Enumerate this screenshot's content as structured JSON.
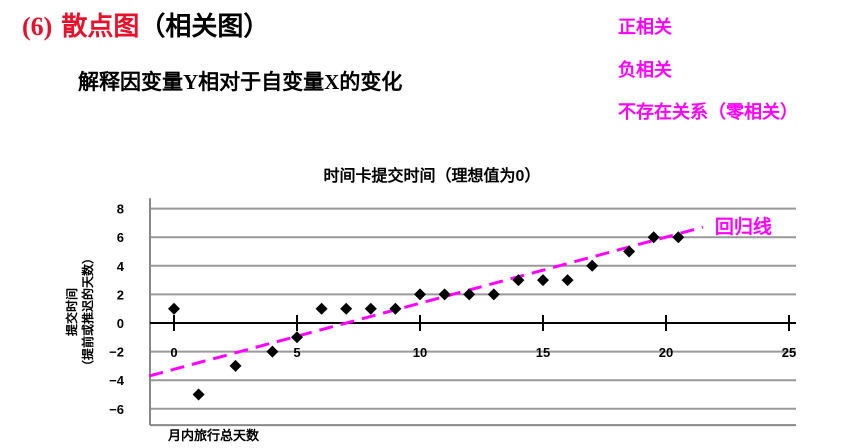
{
  "heading": {
    "number": "(6)",
    "title": "散点图",
    "paren": "（相关图）"
  },
  "subtitle": {
    "part1": "解释因变量",
    "var_y": "Y",
    "part2": "相对于自变量",
    "var_x": "X",
    "part3": "的变化"
  },
  "correlation_types": [
    "正相关",
    "负相关",
    "不存在关系（零相关）"
  ],
  "colors": {
    "heading_red": "#e8102a",
    "accent": "#ff00ff",
    "points": "#000000",
    "grid": "#999999"
  },
  "chart_data": {
    "type": "scatter",
    "title": "时间卡提交时间（理想值为0）",
    "xlabel": "月内旅行总天数",
    "ylabel_line1": "提交时间",
    "ylabel_line2": "（提前或推迟的天数）",
    "xlim": [
      -1,
      25
    ],
    "ylim": [
      -7,
      9
    ],
    "xticks": [
      0,
      5,
      10,
      15,
      20,
      25
    ],
    "yticks": [
      8,
      6,
      4,
      2,
      0,
      -2,
      -4,
      -6
    ],
    "grid": "horizontal",
    "points": [
      {
        "x": 0,
        "y": 1
      },
      {
        "x": 1,
        "y": -5
      },
      {
        "x": 2.5,
        "y": -3
      },
      {
        "x": 4,
        "y": -2
      },
      {
        "x": 5,
        "y": -1
      },
      {
        "x": 6,
        "y": 1
      },
      {
        "x": 7,
        "y": 1
      },
      {
        "x": 8,
        "y": 1
      },
      {
        "x": 9,
        "y": 1
      },
      {
        "x": 10,
        "y": 2
      },
      {
        "x": 11,
        "y": 2
      },
      {
        "x": 12,
        "y": 2
      },
      {
        "x": 13,
        "y": 2
      },
      {
        "x": 14,
        "y": 3
      },
      {
        "x": 15,
        "y": 3
      },
      {
        "x": 16,
        "y": 3
      },
      {
        "x": 17,
        "y": 4
      },
      {
        "x": 18.5,
        "y": 5
      },
      {
        "x": 19.5,
        "y": 6
      },
      {
        "x": 20.5,
        "y": 6
      }
    ],
    "regression_line": {
      "label": "回归线",
      "x": [
        -1,
        21.5
      ],
      "y": [
        -3.7,
        6.7
      ]
    }
  }
}
